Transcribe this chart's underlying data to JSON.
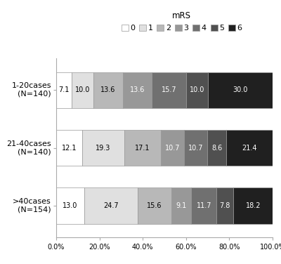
{
  "title": "mRS",
  "categories": [
    "1-20cases\n(N=140)",
    "21-40cases\n(N=140)",
    ">40cases\n(N=154)"
  ],
  "mrs_labels": [
    "0",
    "1",
    "2",
    "3",
    "4",
    "5",
    "6"
  ],
  "colors": [
    "#ffffff",
    "#e0e0e0",
    "#b8b8b8",
    "#989898",
    "#707070",
    "#505050",
    "#202020"
  ],
  "values": [
    [
      7.1,
      10.0,
      13.6,
      13.6,
      15.7,
      10.0,
      30.0
    ],
    [
      12.1,
      19.3,
      17.1,
      10.7,
      10.7,
      8.6,
      21.4
    ],
    [
      13.0,
      24.7,
      15.6,
      9.1,
      11.7,
      7.8,
      18.2
    ]
  ],
  "bar_height": 0.62,
  "background_color": "#ffffff",
  "text_color_light": "#ffffff",
  "text_color_dark": "#000000",
  "legend_fontsize": 8,
  "label_fontsize": 7,
  "ylabel_fontsize": 8,
  "bar_edge_color": "#999999",
  "spine_color": "#aaaaaa",
  "text_threshold": 2
}
